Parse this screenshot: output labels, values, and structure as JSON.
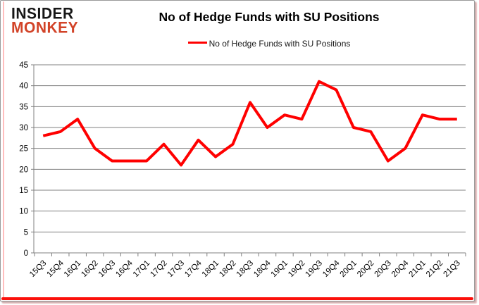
{
  "logo": {
    "line1": "INSIDER",
    "line2": "MONKEY"
  },
  "header": {
    "title": "No of Hedge Funds with SU Positions"
  },
  "legend": {
    "label": "No of Hedge Funds with SU Positions",
    "color": "#ff0000"
  },
  "colors": {
    "line": "#ff0000",
    "grid": "#808080",
    "axis_text": "#000000",
    "logo_black": "#171717",
    "logo_red": "#d24328",
    "frame_red": "#fb100b"
  },
  "chart_data": {
    "type": "line",
    "title": "No of Hedge Funds with SU Positions",
    "categories": [
      "15Q3",
      "15Q4",
      "16Q1",
      "16Q2",
      "16Q3",
      "16Q4",
      "17Q1",
      "17Q2",
      "17Q3",
      "17Q4",
      "18Q1",
      "18Q2",
      "18Q3",
      "18Q4",
      "19Q1",
      "19Q2",
      "19Q3",
      "19Q4",
      "20Q1",
      "20Q2",
      "20Q3",
      "20Q4",
      "21Q1",
      "21Q2",
      "21Q3"
    ],
    "series": [
      {
        "name": "No of Hedge Funds with SU Positions",
        "color": "#ff0000",
        "values": [
          28,
          29,
          32,
          25,
          22,
          22,
          22,
          26,
          21,
          27,
          23,
          26,
          36,
          30,
          33,
          32,
          41,
          39,
          30,
          29,
          22,
          25,
          33,
          32,
          32
        ]
      }
    ],
    "xlabel": "",
    "ylabel": "",
    "ylim": [
      0,
      45
    ],
    "ytick_step": 5,
    "yticks": [
      0,
      5,
      10,
      15,
      20,
      25,
      30,
      35,
      40,
      45
    ],
    "grid": true,
    "legend_position": "top-center"
  }
}
